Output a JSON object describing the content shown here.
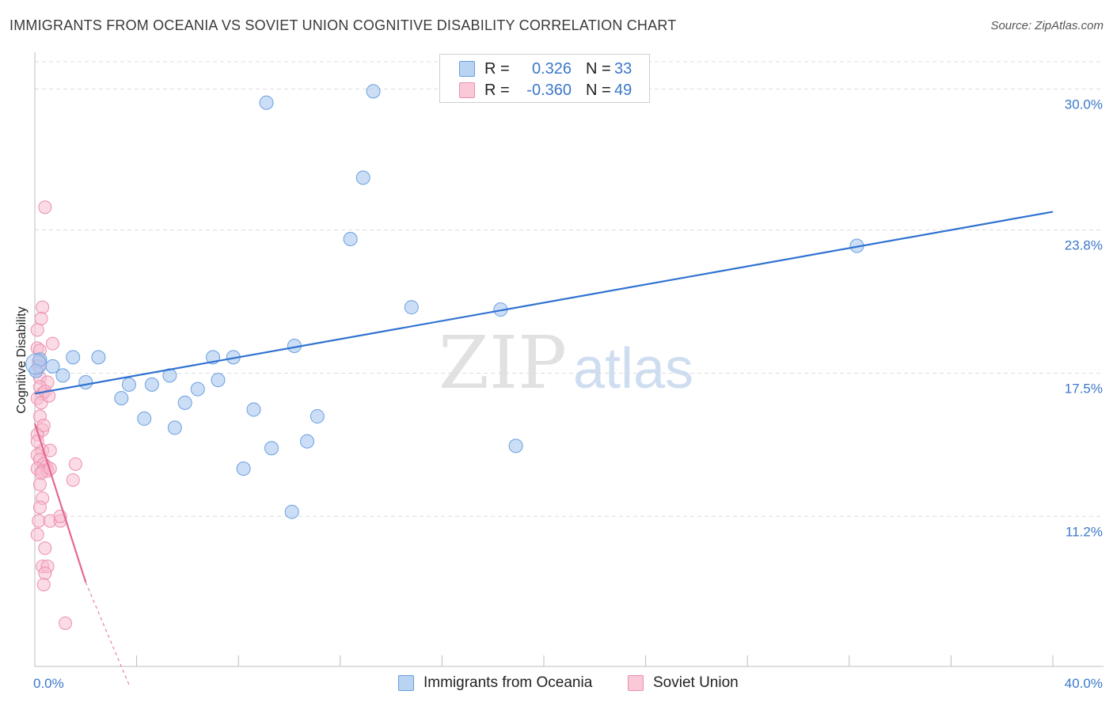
{
  "header": {
    "title": "IMMIGRANTS FROM OCEANIA VS SOVIET UNION COGNITIVE DISABILITY CORRELATION CHART",
    "source": "Source: ZipAtlas.com"
  },
  "watermark": {
    "zip": "ZIP",
    "atlas": "atlas"
  },
  "colors": {
    "blue_fill": "#a9c8f0",
    "blue_stroke": "#6b9fe0",
    "blue_line": "#2f72d0",
    "pink_fill": "#f7bed0",
    "pink_stroke": "#ec8fae",
    "pink_line": "#e4688f",
    "tick_text": "#3b78c9",
    "grid": "#dddddd"
  },
  "legend": {
    "rows": [
      {
        "r_label": "R =",
        "r_value": "0.326",
        "n_label": "N =",
        "n_value": "33"
      },
      {
        "r_label": "R =",
        "r_value": "-0.360",
        "n_label": "N =",
        "n_value": "49"
      }
    ]
  },
  "bottom_legend": {
    "items": [
      {
        "label": "Immigrants from Oceania"
      },
      {
        "label": "Soviet Union"
      }
    ]
  },
  "chart_data": {
    "type": "scatter",
    "title": "IMMIGRANTS FROM OCEANIA VS SOVIET UNION COGNITIVE DISABILITY CORRELATION CHART",
    "xlabel": "",
    "ylabel": "Cognitive Disability",
    "xlim": [
      0,
      40
    ],
    "ylim": [
      4.6,
      31.2
    ],
    "x_tick_labels": [
      "0.0%",
      "40.0%"
    ],
    "y_ticks": [
      11.2,
      17.5,
      23.8,
      30.0
    ],
    "y_tick_labels": [
      "11.2%",
      "17.5%",
      "23.8%",
      "30.0%"
    ],
    "grid": true,
    "series": [
      {
        "name": "Immigrants from Oceania",
        "r": 0.326,
        "n": 33,
        "points": [
          [
            0.2,
            18.1
          ],
          [
            0.7,
            17.8
          ],
          [
            1.1,
            17.4
          ],
          [
            1.5,
            18.2
          ],
          [
            2.0,
            17.1
          ],
          [
            2.5,
            18.2
          ],
          [
            3.4,
            16.4
          ],
          [
            3.7,
            17.0
          ],
          [
            4.3,
            15.5
          ],
          [
            4.6,
            17.0
          ],
          [
            5.3,
            17.4
          ],
          [
            5.5,
            15.1
          ],
          [
            5.9,
            16.2
          ],
          [
            6.4,
            16.8
          ],
          [
            7.0,
            18.2
          ],
          [
            7.2,
            17.2
          ],
          [
            7.8,
            18.2
          ],
          [
            8.2,
            13.3
          ],
          [
            8.6,
            15.9
          ],
          [
            9.1,
            29.4
          ],
          [
            9.3,
            14.2
          ],
          [
            10.1,
            11.4
          ],
          [
            10.2,
            18.7
          ],
          [
            10.7,
            14.5
          ],
          [
            11.1,
            15.6
          ],
          [
            12.4,
            23.4
          ],
          [
            12.9,
            26.1
          ],
          [
            13.3,
            29.9
          ],
          [
            14.8,
            20.4
          ],
          [
            18.3,
            20.3
          ],
          [
            18.9,
            14.3
          ],
          [
            32.3,
            23.1
          ],
          [
            0.05,
            17.6
          ]
        ],
        "trend": {
          "x": [
            0,
            40
          ],
          "y": [
            16.6,
            24.6
          ]
        }
      },
      {
        "name": "Soviet Union",
        "r": -0.36,
        "n": 49,
        "points": [
          [
            0.4,
            24.8
          ],
          [
            0.1,
            18.6
          ],
          [
            0.2,
            18.5
          ],
          [
            0.15,
            18.0
          ],
          [
            0.3,
            20.4
          ],
          [
            0.25,
            19.9
          ],
          [
            0.7,
            18.8
          ],
          [
            0.1,
            19.4
          ],
          [
            0.2,
            17.3
          ],
          [
            0.5,
            17.1
          ],
          [
            0.2,
            16.9
          ],
          [
            0.3,
            16.6
          ],
          [
            0.1,
            16.4
          ],
          [
            0.25,
            16.2
          ],
          [
            0.2,
            15.6
          ],
          [
            0.4,
            16.7
          ],
          [
            0.3,
            15.0
          ],
          [
            0.1,
            14.8
          ],
          [
            0.3,
            14.1
          ],
          [
            0.6,
            14.1
          ],
          [
            0.1,
            13.9
          ],
          [
            0.2,
            13.7
          ],
          [
            0.35,
            13.5
          ],
          [
            0.45,
            13.4
          ],
          [
            0.1,
            13.3
          ],
          [
            0.3,
            13.2
          ],
          [
            0.5,
            13.2
          ],
          [
            0.25,
            13.1
          ],
          [
            0.6,
            13.3
          ],
          [
            1.6,
            13.5
          ],
          [
            1.5,
            12.8
          ],
          [
            0.3,
            12.0
          ],
          [
            0.2,
            11.6
          ],
          [
            0.15,
            11.0
          ],
          [
            0.6,
            11.0
          ],
          [
            1.0,
            11.0
          ],
          [
            1.0,
            11.2
          ],
          [
            0.1,
            10.4
          ],
          [
            0.4,
            9.8
          ],
          [
            0.3,
            9.0
          ],
          [
            0.5,
            9.0
          ],
          [
            0.4,
            8.7
          ],
          [
            0.35,
            8.2
          ],
          [
            1.2,
            6.5
          ],
          [
            0.2,
            12.6
          ],
          [
            0.1,
            14.5
          ],
          [
            0.35,
            15.2
          ],
          [
            0.55,
            16.5
          ],
          [
            0.15,
            17.8
          ]
        ],
        "trend": {
          "x": [
            0,
            2.0
          ],
          "y": [
            15.3,
            8.3
          ]
        },
        "trend_dashed": {
          "x": [
            2.0,
            3.7
          ],
          "y": [
            8.3,
            3.8
          ]
        }
      }
    ]
  }
}
